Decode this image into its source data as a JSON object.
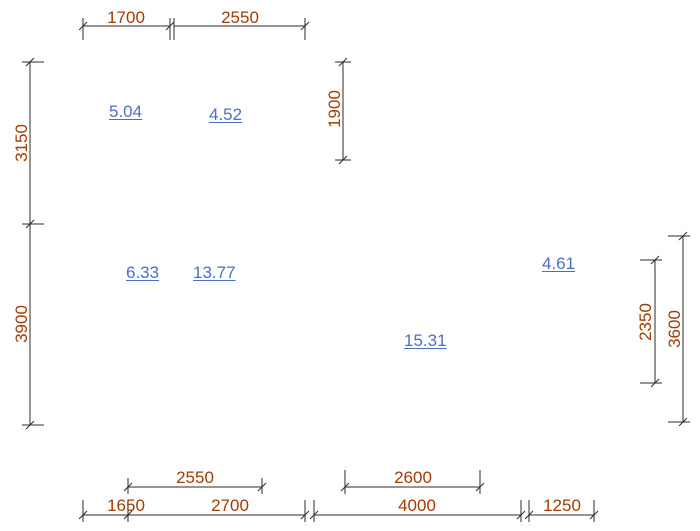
{
  "colors": {
    "dimension_text": "#a23c00",
    "dimension_line": "#2b2b2b",
    "area_label": "#4a6fc7",
    "background": "#ffffff"
  },
  "dimensions": {
    "top_left": "1700",
    "top_right": "2550",
    "left_upper": "3150",
    "left_lower": "3900",
    "inner_vertical": "1900",
    "right_inner": "2350",
    "right_outer": "3600",
    "bottom_inner_left": "2550",
    "bottom_inner_right": "2600",
    "bottom_1": "1650",
    "bottom_2": "2700",
    "bottom_3": "4000",
    "bottom_4": "1250"
  },
  "areas": {
    "room_a": "5.04",
    "room_b": "4.52",
    "room_c": "6.33",
    "room_d": "13.77",
    "room_e": "4.61",
    "room_f": "15.31"
  }
}
